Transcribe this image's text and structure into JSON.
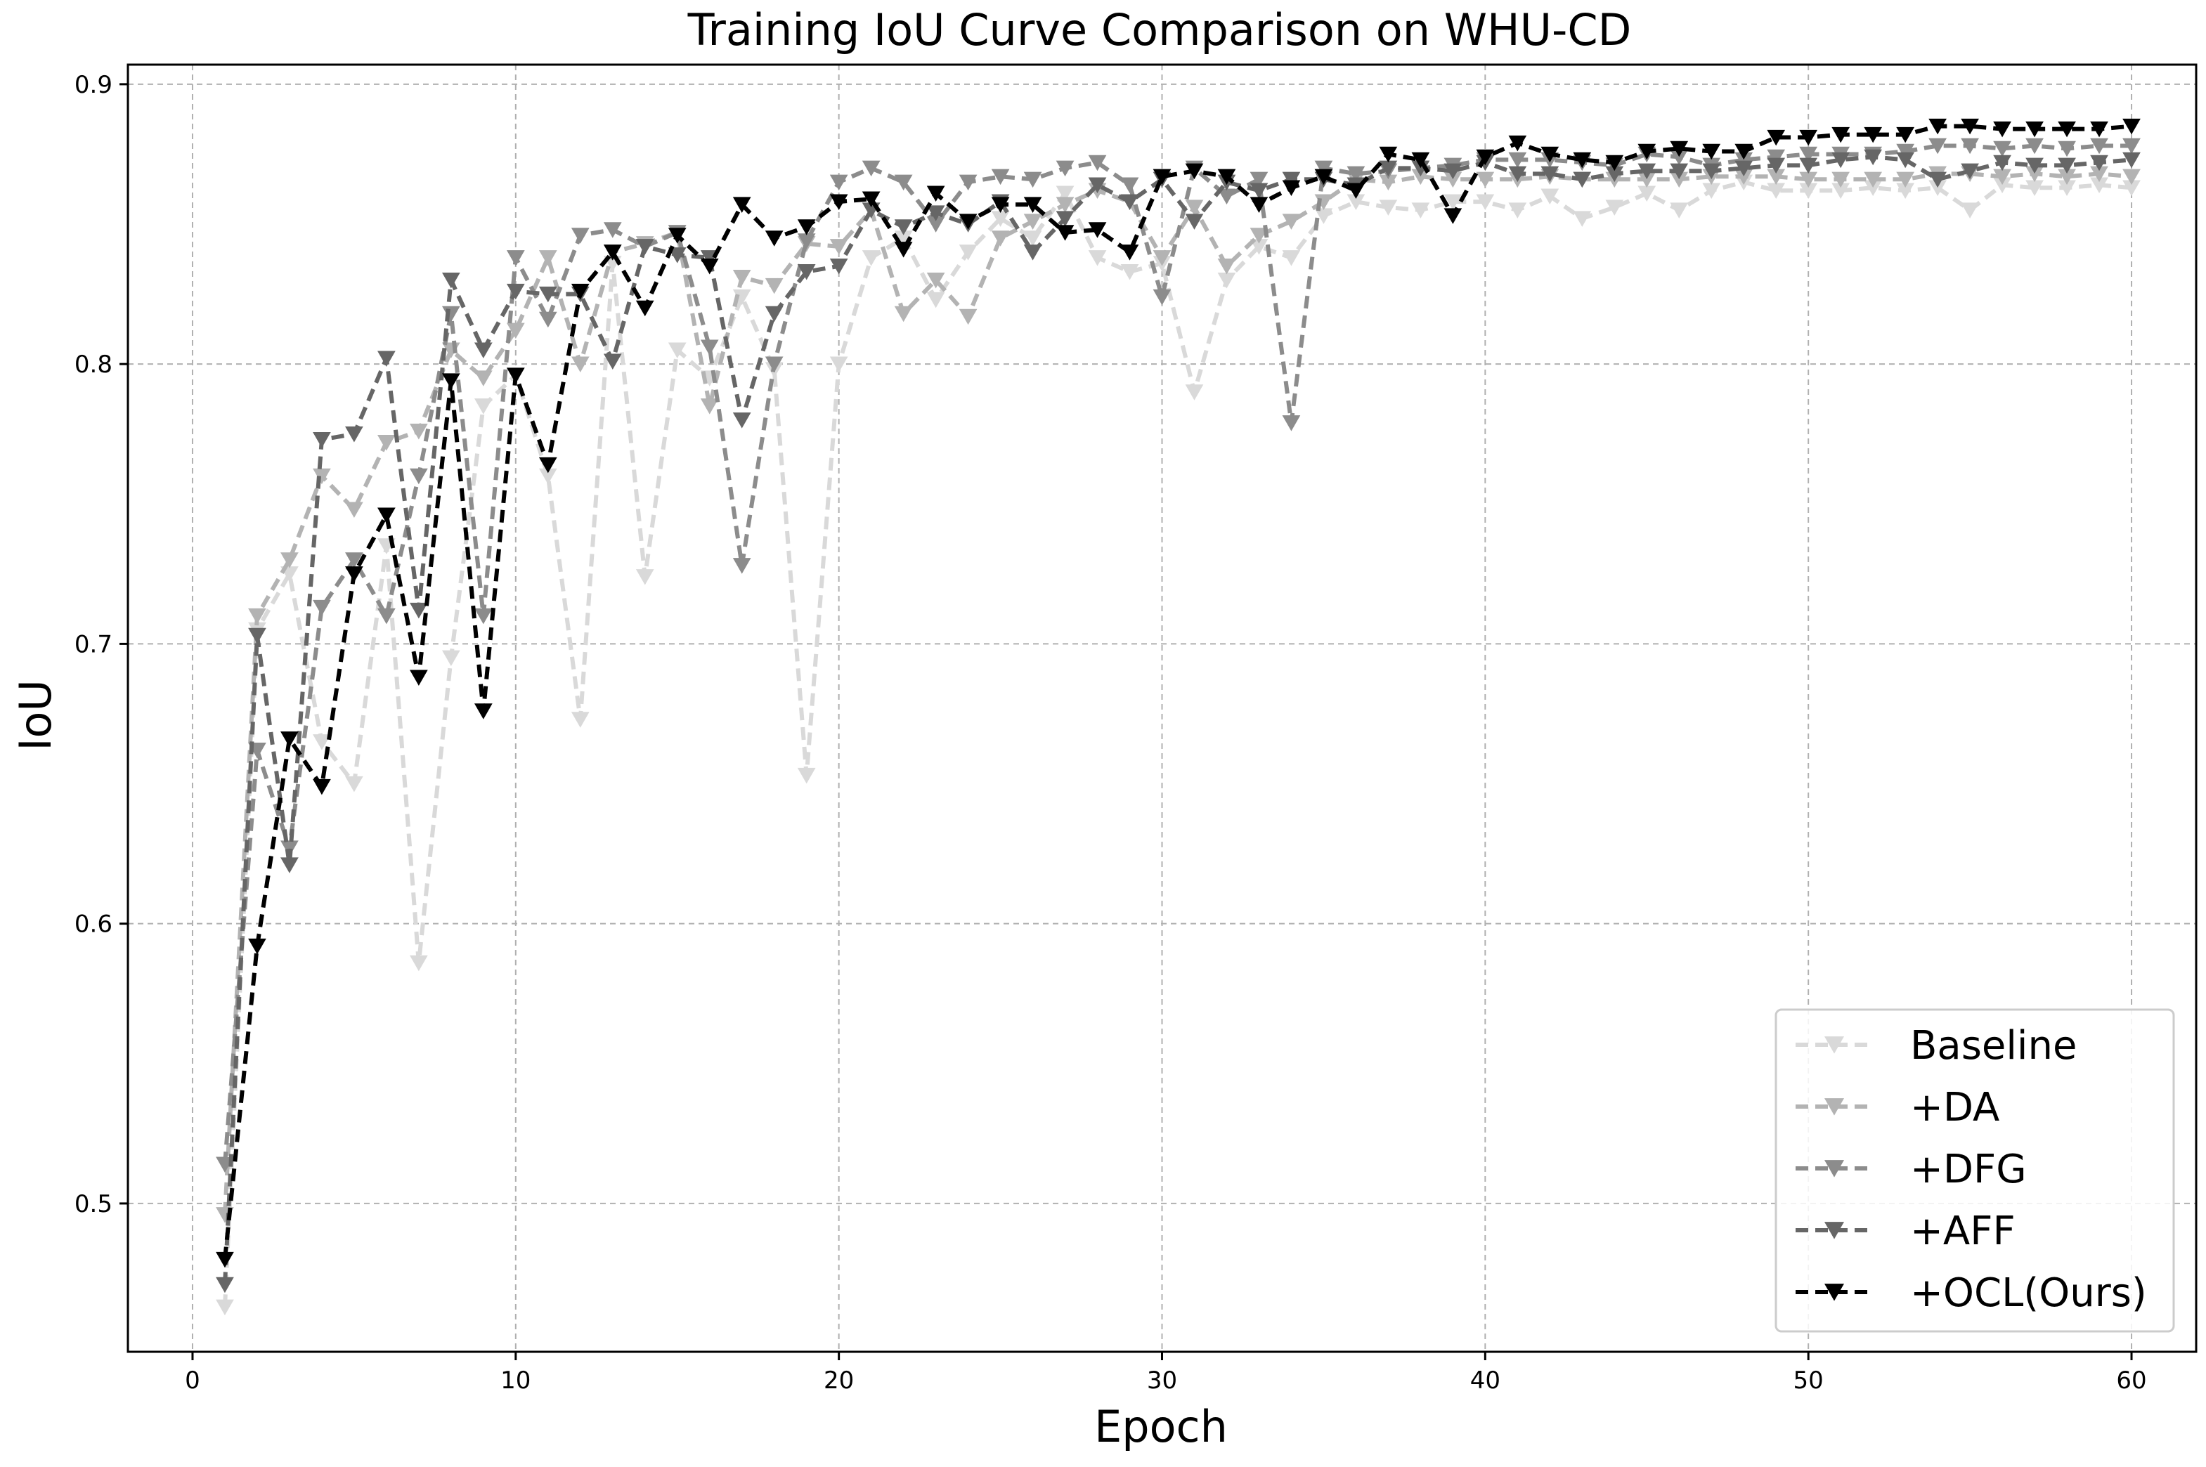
{
  "chart_data": {
    "type": "line",
    "title": "Training IoU Curve Comparison on WHU-CD",
    "xlabel": "Epoch",
    "ylabel": "IoU",
    "xlim": [
      -2,
      62
    ],
    "ylim": [
      0.447,
      0.907
    ],
    "xticks": [
      0,
      10,
      20,
      30,
      40,
      50,
      60
    ],
    "yticks": [
      0.5,
      0.6,
      0.7,
      0.8,
      0.9
    ],
    "xtick_labels": [
      "0",
      "10",
      "20",
      "30",
      "40",
      "50",
      "60"
    ],
    "ytick_labels": [
      "0.5",
      "0.6",
      "0.7",
      "0.8",
      "0.9"
    ],
    "grid": true,
    "legend_position": "bottom-right",
    "marker": "triangle-down",
    "line_style": "dashed",
    "x": [
      1,
      2,
      3,
      4,
      5,
      6,
      7,
      8,
      9,
      10,
      11,
      12,
      13,
      14,
      15,
      16,
      17,
      18,
      19,
      20,
      21,
      22,
      23,
      24,
      25,
      26,
      27,
      28,
      29,
      30,
      31,
      32,
      33,
      34,
      35,
      36,
      37,
      38,
      39,
      40,
      41,
      42,
      43,
      44,
      45,
      46,
      47,
      48,
      49,
      50,
      51,
      52,
      53,
      54,
      55,
      56,
      57,
      58,
      59,
      60
    ],
    "series": [
      {
        "name": "Baseline",
        "color": "#d9d9d9",
        "values": [
          0.463,
          0.705,
          0.725,
          0.665,
          0.65,
          0.735,
          0.586,
          0.695,
          0.785,
          0.796,
          0.76,
          0.673,
          0.836,
          0.724,
          0.805,
          0.795,
          0.824,
          0.798,
          0.653,
          0.8,
          0.838,
          0.845,
          0.823,
          0.84,
          0.852,
          0.845,
          0.861,
          0.838,
          0.833,
          0.836,
          0.79,
          0.83,
          0.842,
          0.838,
          0.853,
          0.858,
          0.856,
          0.855,
          0.858,
          0.858,
          0.855,
          0.86,
          0.852,
          0.856,
          0.861,
          0.855,
          0.862,
          0.865,
          0.862,
          0.862,
          0.862,
          0.863,
          0.862,
          0.863,
          0.855,
          0.864,
          0.863,
          0.863,
          0.864,
          0.863
        ]
      },
      {
        "name": "+DA",
        "color": "#b3b3b3",
        "values": [
          0.496,
          0.71,
          0.73,
          0.76,
          0.748,
          0.772,
          0.776,
          0.805,
          0.795,
          0.812,
          0.838,
          0.8,
          0.84,
          0.843,
          0.847,
          0.785,
          0.831,
          0.828,
          0.843,
          0.842,
          0.855,
          0.818,
          0.83,
          0.817,
          0.845,
          0.851,
          0.857,
          0.862,
          0.858,
          0.838,
          0.856,
          0.835,
          0.846,
          0.851,
          0.858,
          0.866,
          0.865,
          0.867,
          0.866,
          0.866,
          0.866,
          0.867,
          0.866,
          0.866,
          0.866,
          0.866,
          0.867,
          0.867,
          0.867,
          0.866,
          0.866,
          0.866,
          0.866,
          0.868,
          0.868,
          0.867,
          0.868,
          0.867,
          0.868,
          0.867
        ]
      },
      {
        "name": "+DFG",
        "color": "#8c8c8c",
        "values": [
          0.514,
          0.662,
          0.627,
          0.713,
          0.73,
          0.71,
          0.76,
          0.818,
          0.71,
          0.838,
          0.816,
          0.846,
          0.848,
          0.842,
          0.847,
          0.806,
          0.728,
          0.8,
          0.844,
          0.865,
          0.87,
          0.865,
          0.85,
          0.865,
          0.867,
          0.866,
          0.87,
          0.872,
          0.864,
          0.824,
          0.87,
          0.86,
          0.866,
          0.779,
          0.87,
          0.868,
          0.869,
          0.87,
          0.871,
          0.873,
          0.873,
          0.873,
          0.872,
          0.871,
          0.875,
          0.874,
          0.871,
          0.873,
          0.874,
          0.875,
          0.875,
          0.875,
          0.876,
          0.878,
          0.878,
          0.877,
          0.878,
          0.877,
          0.878,
          0.878
        ]
      },
      {
        "name": "+AFF",
        "color": "#666666",
        "values": [
          0.471,
          0.703,
          0.621,
          0.773,
          0.775,
          0.802,
          0.712,
          0.83,
          0.805,
          0.826,
          0.825,
          0.825,
          0.801,
          0.842,
          0.839,
          0.838,
          0.78,
          0.818,
          0.833,
          0.835,
          0.855,
          0.849,
          0.854,
          0.85,
          0.858,
          0.84,
          0.852,
          0.864,
          0.858,
          0.866,
          0.851,
          0.865,
          0.862,
          0.866,
          0.866,
          0.864,
          0.87,
          0.87,
          0.869,
          0.872,
          0.868,
          0.868,
          0.866,
          0.868,
          0.869,
          0.869,
          0.869,
          0.87,
          0.871,
          0.871,
          0.873,
          0.874,
          0.873,
          0.866,
          0.869,
          0.872,
          0.871,
          0.871,
          0.872,
          0.873
        ]
      },
      {
        "name": "+OCL(Ours)",
        "color": "#000000",
        "values": [
          0.48,
          0.592,
          0.666,
          0.649,
          0.725,
          0.746,
          0.688,
          0.794,
          0.676,
          0.796,
          0.764,
          0.826,
          0.84,
          0.82,
          0.846,
          0.835,
          0.857,
          0.845,
          0.849,
          0.858,
          0.859,
          0.841,
          0.861,
          0.851,
          0.857,
          0.857,
          0.847,
          0.848,
          0.84,
          0.867,
          0.869,
          0.867,
          0.857,
          0.863,
          0.867,
          0.862,
          0.875,
          0.873,
          0.853,
          0.874,
          0.879,
          0.875,
          0.873,
          0.872,
          0.876,
          0.877,
          0.876,
          0.876,
          0.881,
          0.881,
          0.882,
          0.882,
          0.882,
          0.885,
          0.885,
          0.884,
          0.884,
          0.884,
          0.884,
          0.885
        ]
      }
    ]
  }
}
